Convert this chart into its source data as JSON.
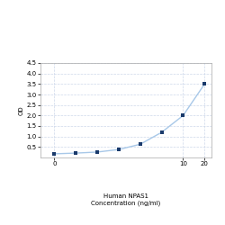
{
  "x_values": [
    0.156,
    0.313,
    0.625,
    1.25,
    2.5,
    5,
    10,
    20
  ],
  "y_values": [
    0.175,
    0.21,
    0.26,
    0.38,
    0.63,
    1.2,
    2.0,
    3.5
  ],
  "line_color": "#a8c8e8",
  "marker_color": "#1a3a6b",
  "marker_size": 3.5,
  "marker_style": "s",
  "xlim_log": [
    -1.0,
    1.35
  ],
  "ylim": [
    0,
    4.5
  ],
  "yticks": [
    0.5,
    1.0,
    1.5,
    2.0,
    2.5,
    3.0,
    3.5,
    4.0,
    4.5
  ],
  "xtick_positions": [
    0.156,
    10,
    20
  ],
  "xtick_labels": [
    "0",
    "10",
    "20"
  ],
  "xlabel_line1": "Human NPAS1",
  "xlabel_line2": "Concentration (ng/ml)",
  "ylabel": "OD",
  "grid_color": "#c8d4e8",
  "grid_style": "--",
  "grid_alpha": 0.9,
  "bg_color": "#ffffff",
  "axis_fontsize": 5,
  "tick_fontsize": 5,
  "linewidth": 1.0
}
